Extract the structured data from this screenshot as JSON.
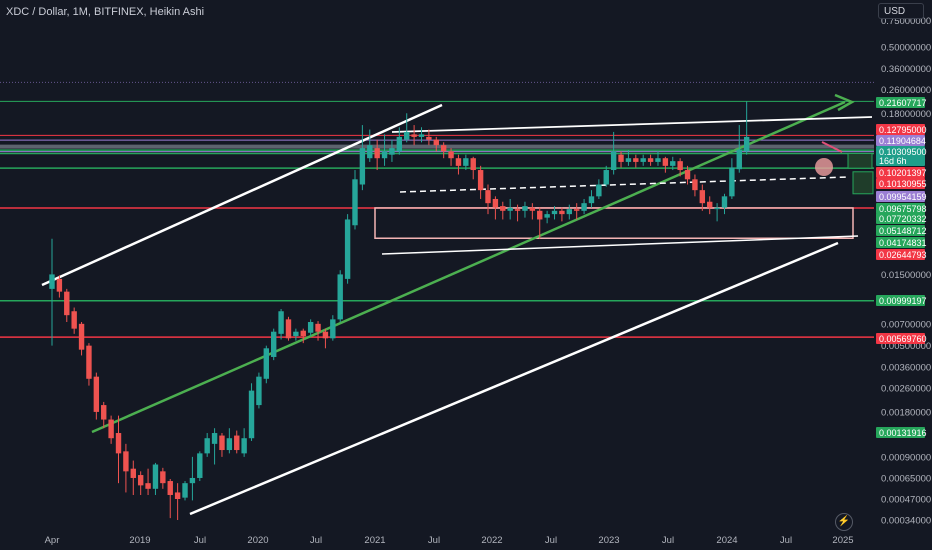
{
  "header": {
    "title": "XDC / Dollar, 1M, BITFINEX, Heikin Ashi",
    "currency_button": "USD"
  },
  "chart_data": {
    "type": "candlestick",
    "scale": "log",
    "title": "XDC / Dollar, 1M, BITFINEX, Heikin Ashi",
    "x_ticks": [
      "Apr",
      "2019",
      "Jul",
      "2020",
      "Jul",
      "2021",
      "Jul",
      "2022",
      "Jul",
      "2023",
      "Jul",
      "2024",
      "Jul",
      "2025"
    ],
    "y_ticks": [
      "0.75000000",
      "0.50000000",
      "0.36000000",
      "0.26000000",
      "0.18000000",
      "0.01500000",
      "0.00700000",
      "0.00500000",
      "0.00360000",
      "0.00260000",
      "0.00180000",
      "0.00090000",
      "0.00065000",
      "0.00047000",
      "0.00034000"
    ],
    "price_labels": [
      {
        "text": "0.21607717",
        "color": "#26a65b"
      },
      {
        "text": "0.12795000",
        "color": "#f23645"
      },
      {
        "text": "0.11904684",
        "color": "#9b7fd4"
      },
      {
        "text": "0.10309500",
        "color": "#1e9e8a"
      },
      {
        "text": "16d 6h",
        "color": "#1e9e8a"
      },
      {
        "text": "0.10201397",
        "color": "#f23645"
      },
      {
        "text": "0.10130955",
        "color": "#f23645"
      },
      {
        "text": "0.09954159",
        "color": "#9b7fd4"
      },
      {
        "text": "0.09675798",
        "color": "#26a65b"
      },
      {
        "text": "0.07720332",
        "color": "#26a65b"
      },
      {
        "text": "0.05148712",
        "color": "#26a65b"
      },
      {
        "text": "0.04174831",
        "color": "#26a65b"
      },
      {
        "text": "0.02644793",
        "color": "#f23645"
      },
      {
        "text": "0.00999197",
        "color": "#26a65b"
      },
      {
        "text": "0.00569760",
        "color": "#f23645"
      },
      {
        "text": "0.00131916",
        "color": "#26a65b"
      }
    ],
    "candles": [
      {
        "o": 0.012,
        "c": 0.015,
        "h": 0.026,
        "l": 0.005
      },
      {
        "o": 0.014,
        "c": 0.0115,
        "h": 0.0148,
        "l": 0.0105
      },
      {
        "o": 0.0115,
        "c": 0.008,
        "h": 0.012,
        "l": 0.0072
      },
      {
        "o": 0.0085,
        "c": 0.0065,
        "h": 0.009,
        "l": 0.006
      },
      {
        "o": 0.007,
        "c": 0.0047,
        "h": 0.0072,
        "l": 0.0043
      },
      {
        "o": 0.005,
        "c": 0.003,
        "h": 0.0052,
        "l": 0.0027
      },
      {
        "o": 0.0031,
        "c": 0.0018,
        "h": 0.0033,
        "l": 0.0016
      },
      {
        "o": 0.002,
        "c": 0.0016,
        "h": 0.0021,
        "l": 0.0014
      },
      {
        "o": 0.0016,
        "c": 0.0012,
        "h": 0.0017,
        "l": 0.0011
      },
      {
        "o": 0.0013,
        "c": 0.00095,
        "h": 0.0017,
        "l": 0.0006
      },
      {
        "o": 0.00098,
        "c": 0.00072,
        "h": 0.0011,
        "l": 0.00052
      },
      {
        "o": 0.00075,
        "c": 0.00065,
        "h": 0.00085,
        "l": 0.0005
      },
      {
        "o": 0.00068,
        "c": 0.00058,
        "h": 0.00072,
        "l": 0.0005
      },
      {
        "o": 0.0006,
        "c": 0.00055,
        "h": 0.00075,
        "l": 0.0005
      },
      {
        "o": 0.00055,
        "c": 0.0008,
        "h": 0.00082,
        "l": 0.0005
      },
      {
        "o": 0.00072,
        "c": 0.0006,
        "h": 0.00076,
        "l": 0.00055
      },
      {
        "o": 0.00062,
        "c": 0.0005,
        "h": 0.00064,
        "l": 0.00035
      },
      {
        "o": 0.00052,
        "c": 0.00047,
        "h": 0.0006,
        "l": 0.00034
      },
      {
        "o": 0.00048,
        "c": 0.0006,
        "h": 0.00062,
        "l": 0.00046
      },
      {
        "o": 0.0006,
        "c": 0.00065,
        "h": 0.0009,
        "l": 0.00046
      },
      {
        "o": 0.00065,
        "c": 0.00095,
        "h": 0.00098,
        "l": 0.00062
      },
      {
        "o": 0.00095,
        "c": 0.0012,
        "h": 0.0013,
        "l": 0.0009
      },
      {
        "o": 0.0011,
        "c": 0.0013,
        "h": 0.0014,
        "l": 0.0008
      },
      {
        "o": 0.00125,
        "c": 0.001,
        "h": 0.0013,
        "l": 0.0009
      },
      {
        "o": 0.001,
        "c": 0.0012,
        "h": 0.0014,
        "l": 0.00095
      },
      {
        "o": 0.00125,
        "c": 0.001,
        "h": 0.00135,
        "l": 0.00095
      },
      {
        "o": 0.00095,
        "c": 0.0012,
        "h": 0.0014,
        "l": 0.0009
      },
      {
        "o": 0.0012,
        "c": 0.0025,
        "h": 0.0028,
        "l": 0.00115
      },
      {
        "o": 0.002,
        "c": 0.0031,
        "h": 0.0033,
        "l": 0.0019
      },
      {
        "o": 0.003,
        "c": 0.0048,
        "h": 0.005,
        "l": 0.0028
      },
      {
        "o": 0.0042,
        "c": 0.0062,
        "h": 0.0065,
        "l": 0.004
      },
      {
        "o": 0.006,
        "c": 0.0085,
        "h": 0.0088,
        "l": 0.0055
      },
      {
        "o": 0.0075,
        "c": 0.0056,
        "h": 0.0078,
        "l": 0.0054
      },
      {
        "o": 0.0058,
        "c": 0.0062,
        "h": 0.0065,
        "l": 0.0054
      },
      {
        "o": 0.0063,
        "c": 0.0058,
        "h": 0.0065,
        "l": 0.0052
      },
      {
        "o": 0.0061,
        "c": 0.0072,
        "h": 0.0075,
        "l": 0.0058
      },
      {
        "o": 0.007,
        "c": 0.0062,
        "h": 0.0073,
        "l": 0.0054
      },
      {
        "o": 0.0062,
        "c": 0.0056,
        "h": 0.0065,
        "l": 0.0048
      },
      {
        "o": 0.0056,
        "c": 0.0075,
        "h": 0.008,
        "l": 0.0054
      },
      {
        "o": 0.0075,
        "c": 0.015,
        "h": 0.016,
        "l": 0.0072
      },
      {
        "o": 0.014,
        "c": 0.035,
        "h": 0.038,
        "l": 0.013
      },
      {
        "o": 0.032,
        "c": 0.065,
        "h": 0.075,
        "l": 0.03
      },
      {
        "o": 0.06,
        "c": 0.105,
        "h": 0.15,
        "l": 0.055
      },
      {
        "o": 0.09,
        "c": 0.11,
        "h": 0.14,
        "l": 0.085
      },
      {
        "o": 0.105,
        "c": 0.09,
        "h": 0.12,
        "l": 0.075
      },
      {
        "o": 0.09,
        "c": 0.1,
        "h": 0.13,
        "l": 0.08
      },
      {
        "o": 0.095,
        "c": 0.105,
        "h": 0.12,
        "l": 0.085
      },
      {
        "o": 0.1,
        "c": 0.125,
        "h": 0.145,
        "l": 0.095
      },
      {
        "o": 0.12,
        "c": 0.135,
        "h": 0.18,
        "l": 0.115
      },
      {
        "o": 0.13,
        "c": 0.125,
        "h": 0.15,
        "l": 0.11
      },
      {
        "o": 0.125,
        "c": 0.13,
        "h": 0.145,
        "l": 0.115
      },
      {
        "o": 0.125,
        "c": 0.12,
        "h": 0.14,
        "l": 0.11
      },
      {
        "o": 0.12,
        "c": 0.11,
        "h": 0.125,
        "l": 0.1
      },
      {
        "o": 0.11,
        "c": 0.1,
        "h": 0.115,
        "l": 0.09
      },
      {
        "o": 0.1,
        "c": 0.09,
        "h": 0.105,
        "l": 0.08
      },
      {
        "o": 0.09,
        "c": 0.08,
        "h": 0.095,
        "l": 0.07
      },
      {
        "o": 0.08,
        "c": 0.09,
        "h": 0.095,
        "l": 0.075
      },
      {
        "o": 0.09,
        "c": 0.075,
        "h": 0.092,
        "l": 0.065
      },
      {
        "o": 0.075,
        "c": 0.055,
        "h": 0.08,
        "l": 0.048
      },
      {
        "o": 0.055,
        "c": 0.045,
        "h": 0.06,
        "l": 0.038
      },
      {
        "o": 0.048,
        "c": 0.042,
        "h": 0.05,
        "l": 0.035
      },
      {
        "o": 0.043,
        "c": 0.04,
        "h": 0.046,
        "l": 0.035
      },
      {
        "o": 0.04,
        "c": 0.042,
        "h": 0.048,
        "l": 0.035
      },
      {
        "o": 0.041,
        "c": 0.04,
        "h": 0.044,
        "l": 0.034
      },
      {
        "o": 0.04,
        "c": 0.043,
        "h": 0.046,
        "l": 0.036
      },
      {
        "o": 0.042,
        "c": 0.04,
        "h": 0.045,
        "l": 0.035
      },
      {
        "o": 0.04,
        "c": 0.035,
        "h": 0.042,
        "l": 0.026
      },
      {
        "o": 0.036,
        "c": 0.038,
        "h": 0.04,
        "l": 0.033
      },
      {
        "o": 0.038,
        "c": 0.04,
        "h": 0.043,
        "l": 0.035
      },
      {
        "o": 0.04,
        "c": 0.038,
        "h": 0.042,
        "l": 0.034
      },
      {
        "o": 0.038,
        "c": 0.041,
        "h": 0.044,
        "l": 0.035
      },
      {
        "o": 0.041,
        "c": 0.04,
        "h": 0.045,
        "l": 0.035
      },
      {
        "o": 0.04,
        "c": 0.045,
        "h": 0.048,
        "l": 0.038
      },
      {
        "o": 0.045,
        "c": 0.05,
        "h": 0.055,
        "l": 0.042
      },
      {
        "o": 0.05,
        "c": 0.06,
        "h": 0.065,
        "l": 0.048
      },
      {
        "o": 0.06,
        "c": 0.075,
        "h": 0.08,
        "l": 0.058
      },
      {
        "o": 0.075,
        "c": 0.1,
        "h": 0.135,
        "l": 0.07
      },
      {
        "o": 0.095,
        "c": 0.085,
        "h": 0.1,
        "l": 0.078
      },
      {
        "o": 0.085,
        "c": 0.09,
        "h": 0.102,
        "l": 0.08
      },
      {
        "o": 0.09,
        "c": 0.085,
        "h": 0.095,
        "l": 0.078
      },
      {
        "o": 0.085,
        "c": 0.09,
        "h": 0.095,
        "l": 0.08
      },
      {
        "o": 0.09,
        "c": 0.085,
        "h": 0.095,
        "l": 0.08
      },
      {
        "o": 0.085,
        "c": 0.09,
        "h": 0.1,
        "l": 0.08
      },
      {
        "o": 0.09,
        "c": 0.08,
        "h": 0.092,
        "l": 0.072
      },
      {
        "o": 0.08,
        "c": 0.086,
        "h": 0.092,
        "l": 0.075
      },
      {
        "o": 0.086,
        "c": 0.075,
        "h": 0.09,
        "l": 0.068
      },
      {
        "o": 0.075,
        "c": 0.065,
        "h": 0.08,
        "l": 0.06
      },
      {
        "o": 0.065,
        "c": 0.055,
        "h": 0.07,
        "l": 0.05
      },
      {
        "o": 0.055,
        "c": 0.045,
        "h": 0.06,
        "l": 0.04
      },
      {
        "o": 0.046,
        "c": 0.042,
        "h": 0.05,
        "l": 0.038
      },
      {
        "o": 0.042,
        "c": 0.042,
        "h": 0.045,
        "l": 0.034
      },
      {
        "o": 0.042,
        "c": 0.05,
        "h": 0.052,
        "l": 0.038
      },
      {
        "o": 0.05,
        "c": 0.078,
        "h": 0.09,
        "l": 0.048
      },
      {
        "o": 0.076,
        "c": 0.103,
        "h": 0.15,
        "l": 0.072
      },
      {
        "o": 0.1,
        "c": 0.125,
        "h": 0.216,
        "l": 0.095
      }
    ]
  }
}
